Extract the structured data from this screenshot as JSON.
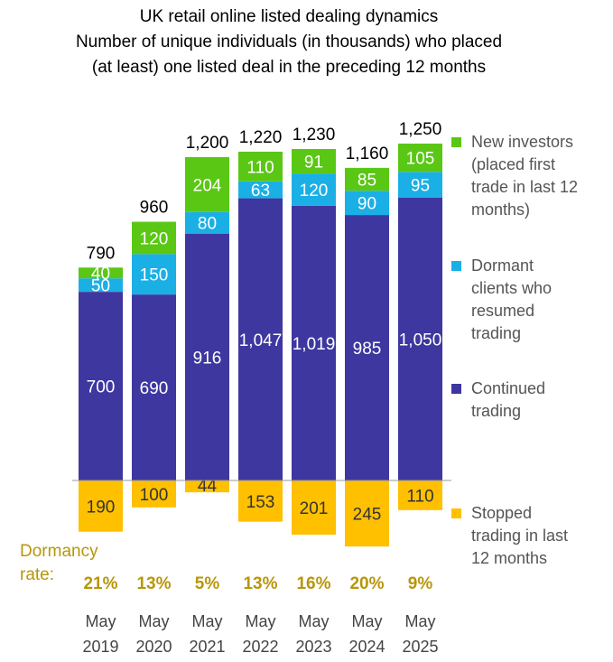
{
  "title_lines": [
    "UK retail online listed dealing dynamics",
    "Number of unique individuals (in thousands) who placed",
    "(at least) one listed deal in the preceding 12 months"
  ],
  "colors": {
    "new": "#5ac715",
    "dormant": "#1ab0e6",
    "continued": "#3e37a0",
    "stopped": "#ffc000",
    "dormancy_text": "#b8960a",
    "axis": "#999999"
  },
  "legend": [
    {
      "key": "new",
      "label": "New investors\n(placed first\ntrade in last 12\nmonths)"
    },
    {
      "key": "dormant",
      "label": "Dormant\nclients who\nresumed\ntrading"
    },
    {
      "key": "continued",
      "label": "Continued\ntrading"
    },
    {
      "key": "stopped",
      "label": "Stopped\ntrading in last\n12 months"
    }
  ],
  "dormancy_label": "Dormancy\nrate:",
  "chart_data": {
    "type": "bar",
    "title": "UK retail online listed dealing dynamics",
    "subtitle": "Number of unique individuals (in thousands) who placed (at least) one listed deal in the preceding 12 months",
    "categories": [
      [
        "May",
        "2019"
      ],
      [
        "May",
        "2020"
      ],
      [
        "May",
        "2021"
      ],
      [
        "May",
        "2022"
      ],
      [
        "May",
        "2023"
      ],
      [
        "May",
        "2024"
      ],
      [
        "May",
        "2025"
      ]
    ],
    "totals": [
      "790",
      "960",
      "1,200",
      "1,220",
      "1,230",
      "1,160",
      "1,250"
    ],
    "series": [
      {
        "key": "continued",
        "name": "Continued trading",
        "values": [
          700,
          690,
          916,
          1047,
          1019,
          985,
          1050
        ],
        "labels": [
          "700",
          "690",
          "916",
          "1,047",
          "1,019",
          "985",
          "1,050"
        ]
      },
      {
        "key": "dormant",
        "name": "Dormant clients who resumed trading",
        "values": [
          50,
          150,
          80,
          63,
          120,
          90,
          95
        ],
        "labels": [
          "50",
          "150",
          "80",
          "63",
          "120",
          "90",
          "95"
        ]
      },
      {
        "key": "new",
        "name": "New investors (placed first trade in last 12 months)",
        "values": [
          40,
          120,
          204,
          110,
          91,
          85,
          105
        ],
        "labels": [
          "40",
          "120",
          "204",
          "110",
          "91",
          "85",
          "105"
        ]
      },
      {
        "key": "stopped",
        "name": "Stopped trading in last 12 months",
        "values": [
          190,
          100,
          44,
          153,
          201,
          245,
          110
        ],
        "labels": [
          "190",
          "100",
          "44",
          "153",
          "201",
          "245",
          "110"
        ],
        "negative": true
      }
    ],
    "dormancy_rate": [
      "21%",
      "13%",
      "5%",
      "13%",
      "16%",
      "20%",
      "9%"
    ],
    "ylim": [
      -245,
      1250
    ],
    "grid": false,
    "legend_position": "right"
  }
}
